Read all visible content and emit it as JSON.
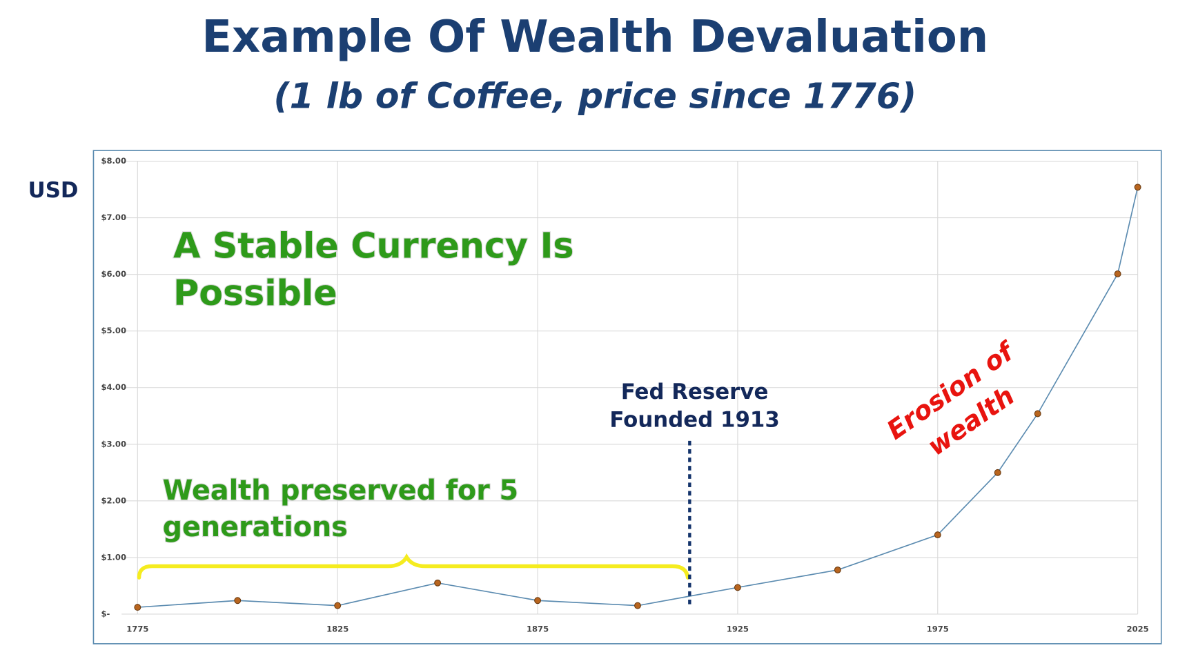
{
  "chart_data": {
    "type": "line",
    "title": "Example Of Wealth Devaluation",
    "subtitle": "(1 lb of Coffee, price since 1776)",
    "y_label": "USD",
    "x": [
      1775,
      1800,
      1825,
      1850,
      1875,
      1900,
      1925,
      1950,
      1975,
      1990,
      2000,
      2020,
      2025
    ],
    "series": [
      {
        "name": "Coffee price",
        "color": "#5b8bb0",
        "values": [
          0.12,
          0.24,
          0.15,
          0.55,
          0.24,
          0.15,
          0.47,
          0.78,
          1.4,
          2.5,
          3.54,
          6.01,
          7.54
        ]
      }
    ],
    "xlim": [
      1775,
      2025
    ],
    "xticks": [
      1775,
      1825,
      1875,
      1925,
      1975,
      2025
    ],
    "ylim": [
      0,
      8
    ],
    "yticks": [
      {
        "value": 0,
        "label": "$-"
      },
      {
        "value": 1,
        "label": "$1.00"
      },
      {
        "value": 2,
        "label": "$2.00"
      },
      {
        "value": 3,
        "label": "$3.00"
      },
      {
        "value": 4,
        "label": "$4.00"
      },
      {
        "value": 5,
        "label": "$5.00"
      },
      {
        "value": 6,
        "label": "$6.00"
      },
      {
        "value": 7,
        "label": "$7.00"
      },
      {
        "value": 8,
        "label": "$8.00"
      }
    ],
    "grid": true,
    "marker_vline": 1913,
    "annotations": [
      {
        "lines": [
          "A Stable Currency Is",
          "Possible"
        ]
      },
      {
        "lines": [
          "Wealth preserved for 5",
          "generations"
        ]
      },
      {
        "lines": [
          "Fed Reserve",
          "Founded 1913"
        ]
      },
      {
        "lines": [
          "Erosion of",
          "wealth"
        ]
      }
    ]
  }
}
